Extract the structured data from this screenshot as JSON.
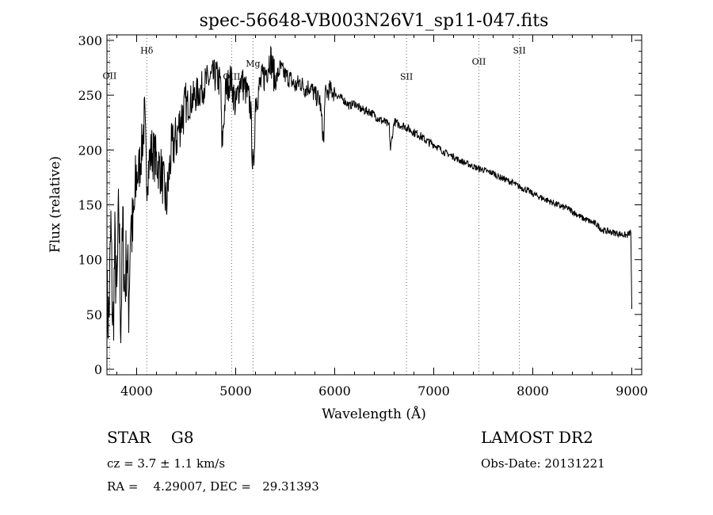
{
  "chart_data": {
    "type": "line",
    "title": "spec-56648-VB003N26V1_sp11-047.fits",
    "xlabel": "Wavelength (Å)",
    "ylabel": "Flux (relative)",
    "xlim": [
      3700,
      9100
    ],
    "ylim": [
      -5,
      305
    ],
    "xticks": [
      "4000",
      "5000",
      "6000",
      "7000",
      "8000",
      "9000"
    ],
    "yticks": [
      "0",
      "50",
      "100",
      "150",
      "200",
      "250",
      "300"
    ],
    "grid": false,
    "series": [
      {
        "x": [
          3700,
          3720,
          3740,
          3760,
          3780,
          3800,
          3820,
          3840,
          3860,
          3880,
          3900,
          3920,
          3940,
          3960,
          3980,
          4000,
          4020,
          4050,
          4080,
          4100,
          4150,
          4200,
          4250,
          4300,
          4350,
          4400,
          4450,
          4500,
          4550,
          4600,
          4650,
          4700,
          4750,
          4800,
          4850,
          4860,
          4900,
          4950,
          5000,
          5050,
          5100,
          5150,
          5170,
          5180,
          5200,
          5250,
          5300,
          5350,
          5400,
          5450,
          5500,
          5550,
          5600,
          5650,
          5700,
          5750,
          5800,
          5850,
          5890,
          5900,
          5950,
          6000,
          6050,
          6100,
          6150,
          6200,
          6250,
          6300,
          6350,
          6400,
          6450,
          6500,
          6550,
          6563,
          6600,
          6650,
          6700,
          6750,
          6800,
          6850,
          6900,
          6950,
          7000,
          7050,
          7100,
          7150,
          7200,
          7250,
          7300,
          7350,
          7400,
          7450,
          7500,
          7550,
          7600,
          7650,
          7700,
          7750,
          7800,
          7850,
          7900,
          7950,
          8000,
          8050,
          8100,
          8150,
          8200,
          8250,
          8300,
          8350,
          8400,
          8450,
          8500,
          8550,
          8600,
          8650,
          8700,
          8750,
          8800,
          8850,
          8900,
          8950,
          8990,
          9000
        ],
        "values": [
          60,
          45,
          130,
          30,
          110,
          60,
          150,
          40,
          130,
          70,
          110,
          60,
          140,
          120,
          150,
          175,
          180,
          200,
          230,
          175,
          200,
          190,
          180,
          150,
          200,
          210,
          230,
          240,
          245,
          250,
          255,
          262,
          265,
          268,
          260,
          200,
          255,
          265,
          240,
          265,
          255,
          240,
          190,
          180,
          245,
          260,
          270,
          285,
          262,
          275,
          268,
          265,
          258,
          262,
          256,
          258,
          250,
          245,
          205,
          250,
          255,
          252,
          248,
          245,
          240,
          243,
          238,
          236,
          235,
          232,
          228,
          226,
          222,
          200,
          226,
          223,
          222,
          219,
          216,
          214,
          210,
          207,
          205,
          202,
          198,
          196,
          194,
          191,
          189,
          187,
          185,
          183,
          182,
          180,
          179,
          176,
          174,
          172,
          170,
          167,
          165,
          163,
          160,
          158,
          156,
          154,
          152,
          150,
          148,
          147,
          144,
          141,
          138,
          136,
          134,
          132,
          127,
          126,
          125,
          124,
          123,
          122,
          125,
          55
        ]
      }
    ],
    "lines": [
      {
        "label": "OII",
        "x": 3727,
        "label_y": 265
      },
      {
        "label": "Hδ",
        "x": 4102,
        "label_y": 288
      },
      {
        "label": "OIII",
        "x": 4959,
        "label_y": 264
      },
      {
        "label": "Mg",
        "x": 5175,
        "label_y": 276
      },
      {
        "label": "SII",
        "x": 6725,
        "label_y": 264
      },
      {
        "label": "OII",
        "x": 7456,
        "label_y": 278
      },
      {
        "label": "SII",
        "x": 7865,
        "label_y": 288
      }
    ]
  },
  "info": {
    "class_line": "STAR    G8",
    "survey": "LAMOST DR2",
    "cz": "cz = 3.7 ± 1.1 km/s",
    "obs_date": "Obs-Date: 20131221",
    "coords": "RA =    4.29007, DEC =   29.31393"
  }
}
